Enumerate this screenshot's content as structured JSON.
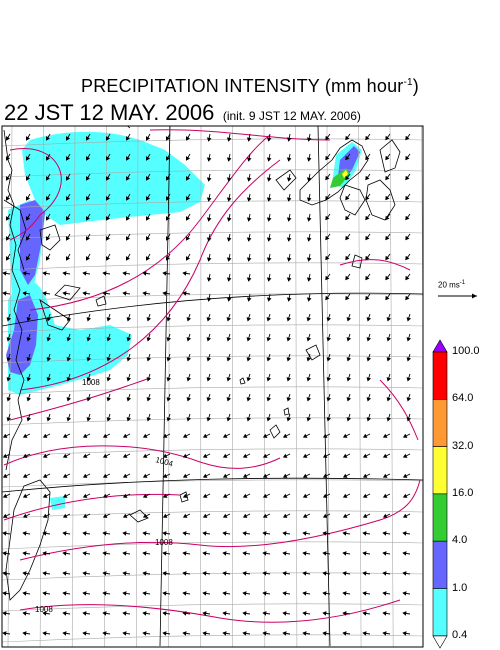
{
  "header": {
    "title_text": "PRECIPITATION INTENSITY (mm hour",
    "title_sup": "-1",
    "title_close": ")",
    "date": "22 JST 12 MAY. 2006",
    "init": "(init. 9 JST 12 MAY. 2006)"
  },
  "wind_scale": {
    "label": "20 ms",
    "sup": "-1"
  },
  "legend": {
    "labels": [
      "100.0",
      "64.0",
      "32.0",
      "16.0",
      "4.0",
      "1.0",
      "0.4"
    ],
    "colors": [
      "#9900ff",
      "#ff0000",
      "#ff9933",
      "#ffff33",
      "#33cc33",
      "#6666ff",
      "#55ffff",
      "#ffffff"
    ]
  },
  "isobars": {
    "labels": [
      "1008",
      "1004",
      "1008",
      "1008"
    ],
    "line_color": "#cc0066"
  },
  "precip_colors": {
    "light": "#55ffff",
    "moderate": "#6666ff",
    "heavy": "#33cc33",
    "strong": "#ffff33"
  },
  "grid_color": "#aaaaaa"
}
